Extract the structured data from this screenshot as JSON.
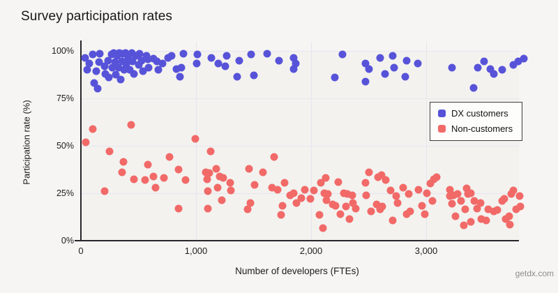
{
  "title": "Survey participation rates",
  "footer": "getdx.com",
  "colors": {
    "dx_customers": "#5753d9",
    "non_customers": "#f16a68",
    "background": "#f6f5f3",
    "gridline": "#e6e5ef",
    "axis": "#26262a"
  },
  "legend": {
    "items": [
      {
        "label": "DX customers",
        "color": "#5753d9"
      },
      {
        "label": "Non-customers",
        "color": "#f16a68"
      }
    ]
  },
  "chart_data": {
    "type": "scatter",
    "title": "Survey participation rates",
    "xlabel": "Number of developers (FTEs)",
    "ylabel": "Participation rate (%)",
    "xlim": [
      0,
      3806
    ],
    "ylim": [
      0,
      100
    ],
    "grid": true,
    "legend_position": "right-inside",
    "x_ticks": [
      {
        "value": 0,
        "label": "0"
      },
      {
        "value": 1000,
        "label": "1,000"
      },
      {
        "value": 2000,
        "label": "2,000"
      },
      {
        "value": 3000,
        "label": "3,000"
      }
    ],
    "y_ticks": [
      {
        "value": 0,
        "label": "0%"
      },
      {
        "value": 25,
        "label": "25%"
      },
      {
        "value": 50,
        "label": "50%"
      },
      {
        "value": 75,
        "label": "75%"
      },
      {
        "value": 100,
        "label": "100%"
      }
    ],
    "series": [
      {
        "name": "DX customers",
        "color": "#5753d9",
        "points": [
          [
            35,
            96.5
          ],
          [
            55,
            90
          ],
          [
            75,
            93.5
          ],
          [
            105,
            98
          ],
          [
            115,
            83
          ],
          [
            135,
            89.5
          ],
          [
            145,
            80
          ],
          [
            155,
            94
          ],
          [
            165,
            98.5
          ],
          [
            205,
            92
          ],
          [
            215,
            88
          ],
          [
            235,
            95
          ],
          [
            245,
            86
          ],
          [
            265,
            98
          ],
          [
            275,
            91
          ],
          [
            285,
            99
          ],
          [
            295,
            94
          ],
          [
            305,
            87.5
          ],
          [
            315,
            97.5
          ],
          [
            325,
            91
          ],
          [
            335,
            99
          ],
          [
            345,
            85
          ],
          [
            355,
            94.5
          ],
          [
            365,
            98.5
          ],
          [
            375,
            90
          ],
          [
            385,
            99
          ],
          [
            395,
            93
          ],
          [
            410,
            96.5
          ],
          [
            425,
            90
          ],
          [
            440,
            99
          ],
          [
            450,
            94.5
          ],
          [
            460,
            88
          ],
          [
            480,
            97.5
          ],
          [
            500,
            92.5
          ],
          [
            510,
            98.5
          ],
          [
            530,
            95
          ],
          [
            540,
            89.5
          ],
          [
            570,
            97.5
          ],
          [
            580,
            95.5
          ],
          [
            590,
            91
          ],
          [
            630,
            96
          ],
          [
            660,
            94.5
          ],
          [
            670,
            90
          ],
          [
            710,
            93.5
          ],
          [
            760,
            96.5
          ],
          [
            790,
            97.5
          ],
          [
            830,
            90.5
          ],
          [
            860,
            86.5
          ],
          [
            875,
            91
          ],
          [
            890,
            98.5
          ],
          [
            1005,
            93.5
          ],
          [
            1010,
            98
          ],
          [
            1135,
            96.5
          ],
          [
            1195,
            93.5
          ],
          [
            1255,
            92
          ],
          [
            1265,
            97.5
          ],
          [
            1355,
            86.5
          ],
          [
            1375,
            95
          ],
          [
            1480,
            98
          ],
          [
            1500,
            87
          ],
          [
            1620,
            98.5
          ],
          [
            1720,
            95
          ],
          [
            1850,
            90.5
          ],
          [
            1850,
            96.5
          ],
          [
            1865,
            93.5
          ],
          [
            2205,
            86
          ],
          [
            2275,
            98
          ],
          [
            2470,
            84
          ],
          [
            2470,
            93.5
          ],
          [
            2500,
            90.5
          ],
          [
            2600,
            96.5
          ],
          [
            2640,
            88
          ],
          [
            2710,
            97.5
          ],
          [
            2720,
            91
          ],
          [
            2820,
            86.5
          ],
          [
            2830,
            95
          ],
          [
            2925,
            93.5
          ],
          [
            3225,
            91
          ],
          [
            3410,
            80.5
          ],
          [
            3450,
            91
          ],
          [
            3500,
            94.5
          ],
          [
            3560,
            90.5
          ],
          [
            3590,
            88
          ],
          [
            3660,
            90
          ],
          [
            3760,
            92.5
          ],
          [
            3800,
            94.5
          ],
          [
            3850,
            96
          ]
        ]
      },
      {
        "name": "Non-customers",
        "color": "#f16a68",
        "points": [
          [
            42,
            52
          ],
          [
            103,
            59
          ],
          [
            205,
            26
          ],
          [
            247,
            47
          ],
          [
            360,
            36
          ],
          [
            370,
            41.5
          ],
          [
            438,
            61
          ],
          [
            460,
            32.5
          ],
          [
            560,
            32
          ],
          [
            580,
            40
          ],
          [
            630,
            34
          ],
          [
            650,
            28
          ],
          [
            720,
            33
          ],
          [
            770,
            44
          ],
          [
            850,
            17
          ],
          [
            850,
            37.5
          ],
          [
            910,
            32
          ],
          [
            995,
            53.5
          ],
          [
            1085,
            36
          ],
          [
            1095,
            32.5
          ],
          [
            1105,
            17
          ],
          [
            1105,
            26
          ],
          [
            1115,
            35.5
          ],
          [
            1125,
            47
          ],
          [
            1175,
            38
          ],
          [
            1185,
            28
          ],
          [
            1205,
            34
          ],
          [
            1225,
            21.5
          ],
          [
            1235,
            33
          ],
          [
            1295,
            30.5
          ],
          [
            1305,
            26.5
          ],
          [
            1450,
            16.5
          ],
          [
            1460,
            38
          ],
          [
            1470,
            20
          ],
          [
            1510,
            29.5
          ],
          [
            1580,
            36
          ],
          [
            1660,
            28
          ],
          [
            1680,
            44
          ],
          [
            1710,
            27
          ],
          [
            1740,
            13.5
          ],
          [
            1750,
            18.5
          ],
          [
            1770,
            30.5
          ],
          [
            1820,
            24
          ],
          [
            1850,
            25
          ],
          [
            1870,
            20
          ],
          [
            1915,
            22.5
          ],
          [
            1945,
            27
          ],
          [
            1995,
            22
          ],
          [
            2025,
            26.5
          ],
          [
            2075,
            13.5
          ],
          [
            2085,
            30.5
          ],
          [
            2105,
            6.5
          ],
          [
            2115,
            25
          ],
          [
            2125,
            33
          ],
          [
            2135,
            21.5
          ],
          [
            2145,
            24.5
          ],
          [
            2185,
            19
          ],
          [
            2215,
            18.5
          ],
          [
            2235,
            31
          ],
          [
            2255,
            14
          ],
          [
            2285,
            25
          ],
          [
            2305,
            18
          ],
          [
            2315,
            24.5
          ],
          [
            2335,
            11.5
          ],
          [
            2355,
            24
          ],
          [
            2365,
            20
          ],
          [
            2385,
            17
          ],
          [
            2470,
            30.5
          ],
          [
            2480,
            24
          ],
          [
            2500,
            36
          ],
          [
            2520,
            15.5
          ],
          [
            2570,
            19
          ],
          [
            2580,
            33.5
          ],
          [
            2600,
            16.5
          ],
          [
            2610,
            34.5
          ],
          [
            2620,
            18
          ],
          [
            2650,
            32
          ],
          [
            2690,
            26.5
          ],
          [
            2710,
            10.5
          ],
          [
            2740,
            23.5
          ],
          [
            2750,
            20
          ],
          [
            2800,
            28
          ],
          [
            2830,
            14
          ],
          [
            2850,
            24.5
          ],
          [
            2860,
            15.5
          ],
          [
            2935,
            27
          ],
          [
            2965,
            18.5
          ],
          [
            2985,
            14
          ],
          [
            3005,
            25
          ],
          [
            3035,
            30
          ],
          [
            3055,
            21
          ],
          [
            3065,
            32.5
          ],
          [
            3090,
            33.5
          ],
          [
            3205,
            23.5
          ],
          [
            3205,
            27
          ],
          [
            3225,
            19.5
          ],
          [
            3235,
            24
          ],
          [
            3255,
            13
          ],
          [
            3275,
            24.5
          ],
          [
            3305,
            21
          ],
          [
            3325,
            8
          ],
          [
            3340,
            16.5
          ],
          [
            3350,
            27.5
          ],
          [
            3365,
            24.5
          ],
          [
            3385,
            25
          ],
          [
            3390,
            10
          ],
          [
            3420,
            21
          ],
          [
            3440,
            17
          ],
          [
            3470,
            20
          ],
          [
            3480,
            11.5
          ],
          [
            3520,
            10.5
          ],
          [
            3540,
            16.5
          ],
          [
            3590,
            15.5
          ],
          [
            3620,
            16
          ],
          [
            3660,
            21
          ],
          [
            3680,
            22
          ],
          [
            3690,
            11.5
          ],
          [
            3720,
            13
          ],
          [
            3730,
            8.5
          ],
          [
            3740,
            24.5
          ],
          [
            3760,
            26.5
          ],
          [
            3780,
            16.5
          ],
          [
            3810,
            23.5
          ],
          [
            3820,
            18
          ]
        ]
      }
    ]
  }
}
